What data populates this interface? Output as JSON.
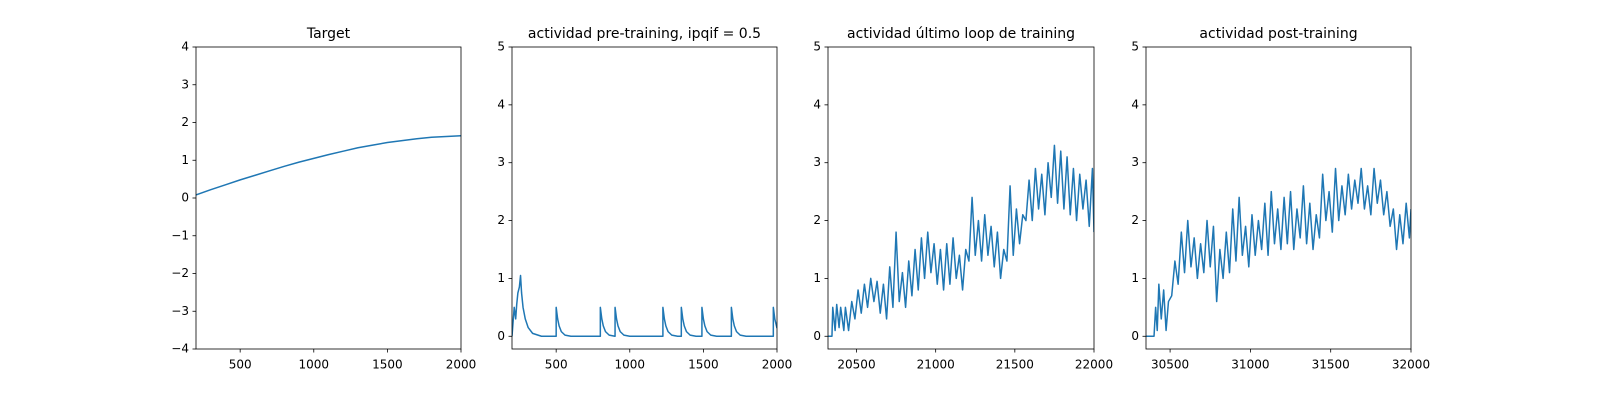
{
  "chart_data": [
    {
      "type": "line",
      "title": "Target",
      "color": "#1f77b4",
      "x": [
        200,
        300,
        400,
        500,
        600,
        700,
        800,
        900,
        1000,
        1100,
        1200,
        1300,
        1400,
        1500,
        1600,
        1700,
        1800,
        1900,
        2000
      ],
      "values": [
        0.08,
        0.22,
        0.35,
        0.48,
        0.6,
        0.72,
        0.84,
        0.95,
        1.05,
        1.15,
        1.24,
        1.33,
        1.4,
        1.47,
        1.52,
        1.57,
        1.61,
        1.63,
        1.65
      ],
      "xlim": [
        200,
        2000
      ],
      "ylim": [
        -4,
        4
      ],
      "xticks": [
        500,
        1000,
        1500,
        2000
      ],
      "yticks": [
        {
          "value": -4,
          "label": "−4"
        },
        {
          "value": -3,
          "label": "−3"
        },
        {
          "value": -2,
          "label": "−2"
        },
        {
          "value": -1,
          "label": "−1"
        },
        0,
        1,
        2,
        3,
        4
      ]
    },
    {
      "type": "line",
      "title": "actividad pre-training, ipqif = 0.5",
      "color": "#1f77b4",
      "x": [
        200,
        215,
        225,
        232,
        240,
        250,
        258,
        265,
        275,
        290,
        310,
        340,
        400,
        500,
        500,
        510,
        520,
        535,
        560,
        600,
        800,
        800,
        810,
        820,
        835,
        860,
        899,
        900,
        900,
        910,
        920,
        935,
        960,
        1000,
        1225,
        1225,
        1235,
        1245,
        1260,
        1285,
        1325,
        1350,
        1350,
        1360,
        1370,
        1385,
        1410,
        1450,
        1490,
        1490,
        1500,
        1510,
        1525,
        1550,
        1590,
        1690,
        1690,
        1700,
        1710,
        1725,
        1750,
        1790,
        1975,
        1975,
        1985,
        2000
      ],
      "values": [
        0,
        0.5,
        0.3,
        0.55,
        0.75,
        0.85,
        1.05,
        0.75,
        0.5,
        0.3,
        0.15,
        0.05,
        0,
        0,
        0.5,
        0.3,
        0.18,
        0.08,
        0.02,
        0,
        0,
        0.5,
        0.3,
        0.18,
        0.08,
        0.02,
        0,
        0,
        0.5,
        0.3,
        0.18,
        0.08,
        0.02,
        0,
        0,
        0.5,
        0.3,
        0.18,
        0.08,
        0.02,
        0,
        0,
        0.5,
        0.3,
        0.18,
        0.08,
        0.02,
        0,
        0,
        0.5,
        0.3,
        0.18,
        0.08,
        0.02,
        0,
        0,
        0.5,
        0.3,
        0.18,
        0.08,
        0.02,
        0,
        0,
        0.5,
        0.3,
        0.14
      ],
      "xlim": [
        200,
        2000
      ],
      "ylim": [
        -0.22,
        5
      ],
      "xticks": [
        500,
        1000,
        1500,
        2000
      ],
      "yticks": [
        0,
        1,
        2,
        3,
        4,
        5
      ]
    },
    {
      "type": "line",
      "title": "actividad último loop de training",
      "color": "#1f77b4",
      "x": [
        20320,
        20345,
        20350,
        20365,
        20375,
        20390,
        20400,
        20420,
        20430,
        20450,
        20470,
        20490,
        20510,
        20530,
        20550,
        20570,
        20590,
        20610,
        20630,
        20650,
        20670,
        20690,
        20710,
        20730,
        20750,
        20770,
        20790,
        20810,
        20830,
        20850,
        20870,
        20890,
        20910,
        20930,
        20950,
        20970,
        20990,
        21010,
        21030,
        21050,
        21070,
        21090,
        21110,
        21130,
        21150,
        21170,
        21190,
        21210,
        21230,
        21250,
        21270,
        21290,
        21310,
        21330,
        21350,
        21370,
        21390,
        21410,
        21430,
        21450,
        21470,
        21490,
        21510,
        21530,
        21550,
        21570,
        21590,
        21610,
        21630,
        21650,
        21670,
        21690,
        21710,
        21730,
        21750,
        21770,
        21790,
        21810,
        21830,
        21850,
        21870,
        21890,
        21910,
        21930,
        21950,
        21970,
        21990,
        22000
      ],
      "values": [
        0,
        0,
        0.5,
        0.1,
        0.55,
        0.15,
        0.5,
        0.1,
        0.5,
        0.1,
        0.6,
        0.3,
        0.8,
        0.4,
        0.9,
        0.5,
        1.0,
        0.6,
        0.95,
        0.4,
        0.9,
        0.3,
        1.2,
        0.5,
        1.8,
        0.6,
        1.1,
        0.5,
        1.3,
        0.7,
        1.5,
        0.8,
        1.7,
        1.0,
        1.8,
        1.1,
        1.6,
        0.9,
        1.5,
        0.8,
        1.6,
        0.9,
        1.7,
        1.0,
        1.4,
        0.8,
        1.5,
        1.3,
        2.4,
        1.4,
        2.0,
        1.3,
        2.1,
        1.4,
        1.9,
        1.2,
        1.8,
        1.0,
        1.5,
        1.3,
        2.6,
        1.4,
        2.2,
        1.6,
        2.1,
        2.0,
        2.7,
        2.0,
        2.9,
        2.2,
        2.8,
        2.1,
        3.0,
        2.4,
        3.3,
        2.3,
        3.2,
        2.2,
        3.1,
        2.1,
        2.9,
        2.0,
        2.8,
        2.2,
        2.7,
        1.9,
        2.9,
        1.8
      ],
      "xlim": [
        20320,
        22000
      ],
      "ylim": [
        -0.22,
        5
      ],
      "xticks": [
        20500,
        21000,
        21500,
        22000
      ],
      "yticks": [
        0,
        1,
        2,
        3,
        4,
        5
      ]
    },
    {
      "type": "line",
      "title": "actividad post-training",
      "color": "#1f77b4",
      "x": [
        30350,
        30400,
        30410,
        30420,
        30430,
        30445,
        30460,
        30475,
        30490,
        30510,
        30530,
        30550,
        30570,
        30590,
        30610,
        30630,
        30650,
        30670,
        30690,
        30710,
        30730,
        30750,
        30770,
        30790,
        30810,
        30830,
        30850,
        30870,
        30890,
        30910,
        30930,
        30950,
        30970,
        30990,
        31010,
        31030,
        31050,
        31070,
        31090,
        31110,
        31130,
        31150,
        31170,
        31190,
        31210,
        31230,
        31250,
        31270,
        31290,
        31310,
        31330,
        31350,
        31370,
        31390,
        31410,
        31430,
        31450,
        31470,
        31490,
        31510,
        31530,
        31550,
        31570,
        31590,
        31610,
        31630,
        31650,
        31670,
        31690,
        31710,
        31730,
        31750,
        31770,
        31790,
        31810,
        31830,
        31850,
        31870,
        31890,
        31910,
        31930,
        31950,
        31970,
        31990,
        32000
      ],
      "values": [
        0,
        0,
        0.5,
        0.1,
        0.9,
        0.3,
        0.8,
        0.1,
        0.6,
        0.7,
        1.3,
        0.9,
        1.8,
        1.1,
        2.0,
        1.2,
        1.7,
        1.0,
        1.6,
        1.1,
        2.0,
        1.2,
        1.9,
        0.6,
        1.5,
        1.0,
        1.8,
        1.1,
        2.2,
        1.3,
        2.4,
        1.4,
        1.9,
        1.2,
        2.1,
        1.4,
        2.0,
        1.5,
        2.3,
        1.4,
        2.5,
        1.6,
        2.2,
        1.5,
        2.4,
        1.6,
        2.5,
        1.5,
        2.2,
        1.7,
        2.6,
        1.6,
        2.3,
        1.5,
        2.1,
        1.7,
        2.8,
        2.0,
        2.5,
        1.8,
        2.9,
        2.0,
        2.6,
        2.1,
        2.8,
        2.2,
        2.7,
        2.3,
        2.9,
        2.2,
        2.6,
        2.1,
        2.9,
        2.3,
        2.7,
        2.1,
        2.5,
        1.9,
        2.2,
        1.5,
        2.1,
        1.6,
        2.3,
        1.7,
        2.2
      ],
      "xlim": [
        30350,
        32000
      ],
      "ylim": [
        -0.22,
        5
      ],
      "xticks": [
        30500,
        31000,
        31500,
        32000
      ],
      "yticks": [
        0,
        1,
        2,
        3,
        4,
        5
      ]
    }
  ]
}
